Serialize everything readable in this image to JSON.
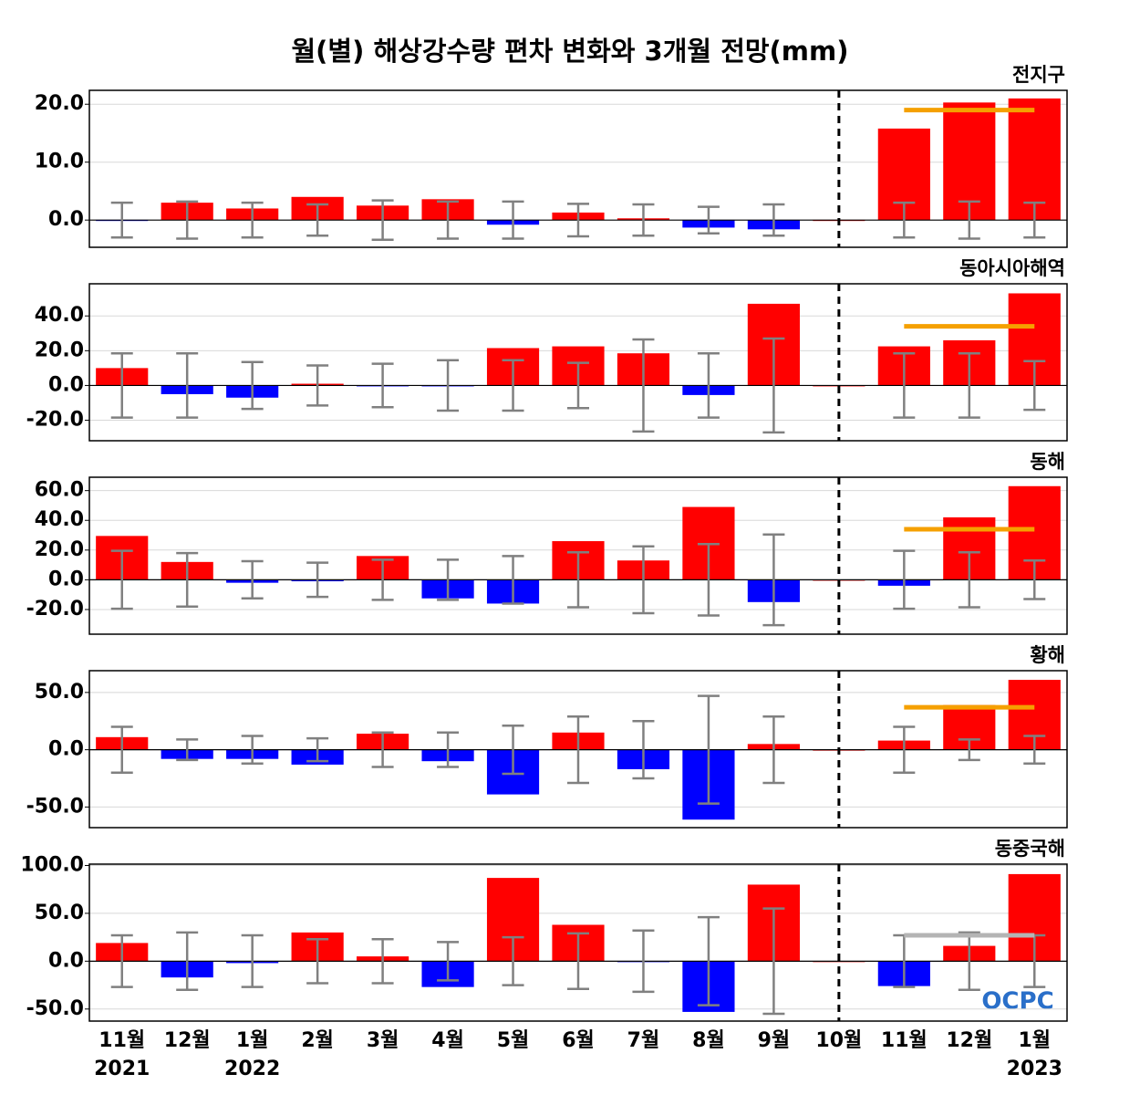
{
  "title": "월(별) 해상강수량 편차 변화와 3개월 전망(mm)",
  "logo": "OCPC",
  "chart_data": [
    {
      "type": "bar",
      "subtitle": "전지구",
      "pos_color": "#ff0000",
      "neg_color": "#0000ff",
      "error_color": "#808080",
      "grid": true,
      "values": [
        -0.1,
        3.0,
        2.0,
        4.0,
        2.5,
        3.6,
        -0.8,
        1.3,
        0.3,
        -1.3,
        -1.6,
        0,
        15.8,
        20.3,
        21.0
      ],
      "error": [
        3.0,
        3.2,
        3.0,
        2.7,
        3.4,
        3.2,
        3.2,
        2.8,
        2.7,
        2.3,
        2.7,
        null,
        3.0,
        3.2,
        3.0
      ],
      "forecast_line": {
        "value": 19,
        "color": "#f5a000"
      },
      "ylim": [
        -4.7,
        22.4
      ],
      "yticks": [
        {
          "value": 0,
          "label": "0.0"
        },
        {
          "value": 10,
          "label": "10.0"
        },
        {
          "value": 20,
          "label": "20.0"
        }
      ]
    },
    {
      "type": "bar",
      "subtitle": "동아시아해역",
      "pos_color": "#ff0000",
      "neg_color": "#0000ff",
      "error_color": "#808080",
      "grid": true,
      "values": [
        10,
        -5,
        -7,
        1,
        -0.5,
        -0.2,
        21.5,
        22.5,
        18.5,
        -5.5,
        47,
        0,
        22.5,
        26,
        53
      ],
      "error": [
        18.5,
        18.5,
        13.5,
        11.5,
        12.5,
        14.5,
        14.5,
        13,
        26.5,
        18.5,
        27,
        null,
        18.5,
        18.5,
        14
      ],
      "forecast_line": {
        "value": 34,
        "color": "#f5a000"
      },
      "ylim": [
        -31.8,
        58.5
      ],
      "yticks": [
        {
          "value": -20,
          "label": "-20.0"
        },
        {
          "value": 0,
          "label": "0.0"
        },
        {
          "value": 20,
          "label": "20.0"
        },
        {
          "value": 40,
          "label": "40.0"
        }
      ]
    },
    {
      "type": "bar",
      "subtitle": "동해",
      "pos_color": "#ff0000",
      "neg_color": "#0000ff",
      "error_color": "#808080",
      "grid": true,
      "values": [
        29.5,
        12,
        -2,
        -1,
        16,
        -12.5,
        -16,
        26,
        13,
        49,
        -15,
        0,
        -4,
        42,
        63
      ],
      "error": [
        19.5,
        18,
        12.5,
        11.5,
        13.5,
        13.5,
        16,
        18.5,
        22.5,
        24,
        30.5,
        null,
        19.5,
        18.5,
        13
      ],
      "forecast_line": {
        "value": 34,
        "color": "#f5a000"
      },
      "ylim": [
        -36.6,
        69
      ],
      "yticks": [
        {
          "value": -20,
          "label": "-20.0"
        },
        {
          "value": 0,
          "label": "0.0"
        },
        {
          "value": 20,
          "label": "20.0"
        },
        {
          "value": 40,
          "label": "40.0"
        },
        {
          "value": 60,
          "label": "60.0"
        }
      ]
    },
    {
      "type": "bar",
      "subtitle": "황해",
      "pos_color": "#ff0000",
      "neg_color": "#0000ff",
      "error_color": "#808080",
      "grid": true,
      "values": [
        11,
        -8,
        -8,
        -13,
        14,
        -10,
        -39,
        15,
        -17,
        -61,
        5,
        0,
        8,
        39,
        61
      ],
      "error": [
        20,
        9,
        12,
        10,
        15,
        15,
        21,
        29,
        25,
        47,
        29,
        null,
        20,
        9,
        12
      ],
      "forecast_line": {
        "value": 37,
        "color": "#f5a000"
      },
      "ylim": [
        -68,
        69
      ],
      "yticks": [
        {
          "value": -50,
          "label": "-50.0"
        },
        {
          "value": 0,
          "label": "0.0"
        },
        {
          "value": 50,
          "label": "50.0"
        }
      ]
    },
    {
      "type": "bar",
      "subtitle": "동중국해",
      "pos_color": "#ff0000",
      "neg_color": "#0000ff",
      "error_color": "#808080",
      "grid": true,
      "values": [
        19,
        -17,
        -2,
        30,
        5,
        -27,
        87,
        38,
        -1,
        -53,
        80,
        0,
        -26,
        16,
        91
      ],
      "error": [
        27,
        30,
        27,
        23,
        23,
        20,
        25,
        29,
        32,
        46,
        55,
        null,
        27,
        30,
        27
      ],
      "forecast_line": {
        "value": 27,
        "color": "#b4b4b4"
      },
      "ylim": [
        -62.6,
        101.4
      ],
      "yticks": [
        {
          "value": -50,
          "label": "-50.0"
        },
        {
          "value": 0,
          "label": "0.0"
        },
        {
          "value": 50,
          "label": "50.0"
        },
        {
          "value": 100,
          "label": "100.0"
        }
      ],
      "categories": [
        "11월",
        "12월",
        "1월",
        "2월",
        "3월",
        "4월",
        "5월",
        "6월",
        "7월",
        "8월",
        "9월",
        "10월",
        "11월",
        "12월",
        "1월"
      ],
      "year_labels": [
        "2021",
        null,
        "2022",
        null,
        null,
        null,
        null,
        null,
        null,
        null,
        null,
        null,
        null,
        null,
        "2023"
      ]
    }
  ]
}
